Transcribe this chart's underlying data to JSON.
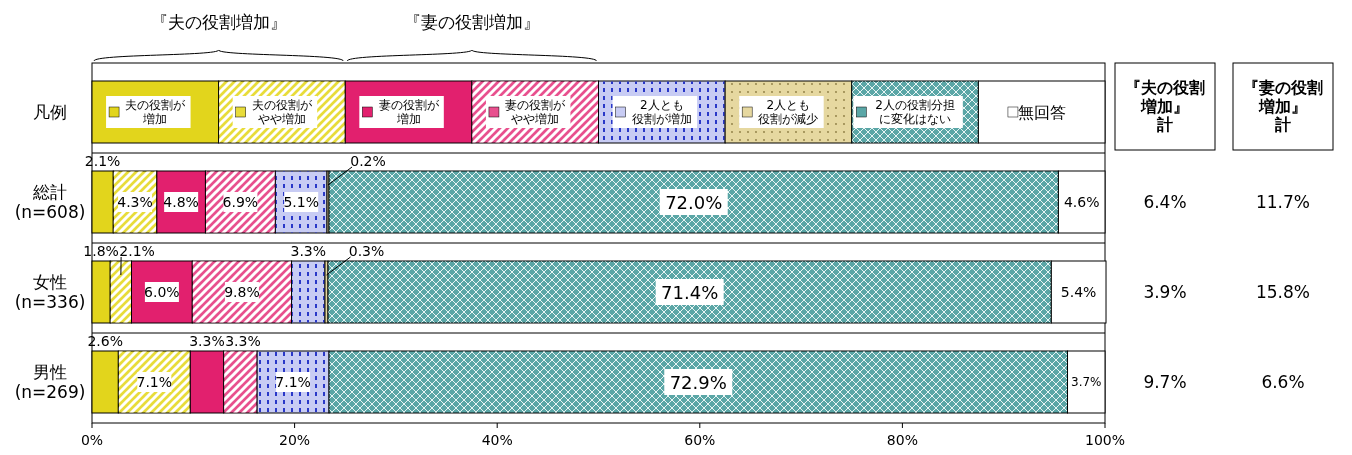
{
  "chart_data": {
    "type": "bar",
    "orientation": "horizontal",
    "stacked": true,
    "legend": "top",
    "legend_title": "凡例",
    "grid": false,
    "categories": [
      "総計\n(n=608)",
      "女性\n(n=336)",
      "男性\n(n=269)"
    ],
    "xlim": [
      0,
      100
    ],
    "xticks": [
      {
        "value": 0,
        "label": "0%"
      },
      {
        "value": 20,
        "label": "20%"
      },
      {
        "value": 40,
        "label": "40%"
      },
      {
        "value": 60,
        "label": "60%"
      },
      {
        "value": 80,
        "label": "80%"
      },
      {
        "value": 100,
        "label": "100%"
      }
    ],
    "series": [
      {
        "name": "夫の役割が増加",
        "color": "#e2d51c",
        "values": [
          2.1,
          1.8,
          2.6
        ],
        "value_labels": [
          "2.1%",
          "1.8%",
          "2.6%"
        ]
      },
      {
        "name": "夫の役割がやや増加",
        "color": "#e8dc3a",
        "values": [
          4.3,
          2.1,
          7.1
        ],
        "value_labels": [
          "4.3%",
          "2.1%",
          "7.1%"
        ]
      },
      {
        "name": "妻の役割が増加",
        "color": "#e2206e",
        "values": [
          4.8,
          6.0,
          3.3
        ],
        "value_labels": [
          "4.8%",
          "6.0%",
          "3.3%"
        ]
      },
      {
        "name": "妻の役割がやや増加",
        "color": "#e8508e",
        "values": [
          6.9,
          9.8,
          3.3
        ],
        "value_labels": [
          "6.9%",
          "9.8%",
          "3.3%"
        ]
      },
      {
        "name": "2人とも役割が増加",
        "color": "#c8ccf4",
        "values": [
          5.1,
          3.3,
          7.1
        ],
        "value_labels": [
          "5.1%",
          "3.3%",
          "7.1%"
        ]
      },
      {
        "name": "2人とも役割が減少",
        "color": "#e6d8a0",
        "values": [
          0.2,
          0.3,
          0
        ],
        "value_labels": [
          "0.2%",
          "0.3%",
          null
        ]
      },
      {
        "name": "2人の役割分担に変化はない",
        "color": "#5aa6a6",
        "values": [
          72.0,
          71.4,
          72.9
        ],
        "value_labels": [
          "72.0%",
          "71.4%",
          "72.9%"
        ]
      },
      {
        "name": "無回答",
        "color": "#ffffff",
        "values": [
          4.6,
          5.4,
          3.7
        ],
        "value_labels": [
          "4.6%",
          "5.4%",
          "3.7%"
        ]
      }
    ],
    "annotations": [
      "『夫の役割増加』",
      "『妻の役割増加』",
      "『夫の役割増加』計",
      "『妻の役割増加』計",
      "6.4%",
      "11.7%",
      "3.9%",
      "15.8%",
      "9.7%",
      "6.6%"
    ]
  }
}
